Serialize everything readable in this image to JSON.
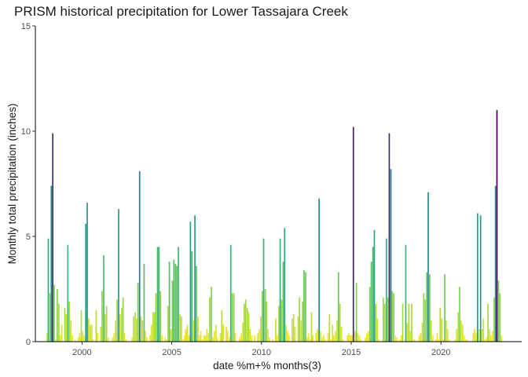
{
  "chart_data": {
    "type": "bar",
    "title": "PRISM historical precipitation for Lower Tassajara Creek",
    "xlabel": "date %m+% months(3)",
    "ylabel": "Monthly total precipitation (inches)",
    "xlim": [
      1997.4,
      2024.5
    ],
    "ylim": [
      0,
      15
    ],
    "x_ticks": [
      2000,
      2005,
      2010,
      2015,
      2020
    ],
    "y_ticks": [
      0,
      5,
      10,
      15
    ],
    "grid": false,
    "legend": "none",
    "color_scale": {
      "name": "viridis",
      "low": "#FDE725",
      "mid_low": "#7AD151",
      "mid": "#22A884",
      "mid_high": "#2A788E",
      "high": "#440154",
      "max_value": 11
    },
    "points": [
      {
        "x": 1998.04,
        "y": 0.4
      },
      {
        "x": 1998.12,
        "y": 4.9
      },
      {
        "x": 1998.21,
        "y": 2.3
      },
      {
        "x": 1998.29,
        "y": 7.4
      },
      {
        "x": 1998.37,
        "y": 9.9
      },
      {
        "x": 1998.46,
        "y": 2.7
      },
      {
        "x": 1998.54,
        "y": 0.1
      },
      {
        "x": 1998.62,
        "y": 2.5
      },
      {
        "x": 1998.71,
        "y": 1.8
      },
      {
        "x": 1998.79,
        "y": 0.3
      },
      {
        "x": 1998.87,
        "y": 0.8
      },
      {
        "x": 1999.04,
        "y": 1.6
      },
      {
        "x": 1999.12,
        "y": 1.3
      },
      {
        "x": 1999.21,
        "y": 4.6
      },
      {
        "x": 1999.29,
        "y": 1.9
      },
      {
        "x": 1999.37,
        "y": 1.0
      },
      {
        "x": 1999.46,
        "y": 0.3
      },
      {
        "x": 1999.62,
        "y": 0.1
      },
      {
        "x": 1999.79,
        "y": 0.2
      },
      {
        "x": 1999.87,
        "y": 0.4
      },
      {
        "x": 1999.96,
        "y": 1.5
      },
      {
        "x": 2000.04,
        "y": 0.5
      },
      {
        "x": 2000.12,
        "y": 0.3
      },
      {
        "x": 2000.21,
        "y": 5.6
      },
      {
        "x": 2000.29,
        "y": 6.6
      },
      {
        "x": 2000.37,
        "y": 1.1
      },
      {
        "x": 2000.46,
        "y": 0.8
      },
      {
        "x": 2000.54,
        "y": 0.8
      },
      {
        "x": 2000.62,
        "y": 0.1
      },
      {
        "x": 2000.79,
        "y": 1.5
      },
      {
        "x": 2000.87,
        "y": 0.4
      },
      {
        "x": 2001.04,
        "y": 0.7
      },
      {
        "x": 2001.12,
        "y": 2.4
      },
      {
        "x": 2001.21,
        "y": 4.1
      },
      {
        "x": 2001.29,
        "y": 1.3
      },
      {
        "x": 2001.37,
        "y": 1.7
      },
      {
        "x": 2001.46,
        "y": 0.2
      },
      {
        "x": 2001.71,
        "y": 0.2
      },
      {
        "x": 2001.79,
        "y": 0.4
      },
      {
        "x": 2001.87,
        "y": 1.0
      },
      {
        "x": 2001.96,
        "y": 2.0
      },
      {
        "x": 2002.04,
        "y": 6.3
      },
      {
        "x": 2002.12,
        "y": 1.3
      },
      {
        "x": 2002.21,
        "y": 1.6
      },
      {
        "x": 2002.29,
        "y": 2.1
      },
      {
        "x": 2002.37,
        "y": 0.4
      },
      {
        "x": 2002.46,
        "y": 0.1
      },
      {
        "x": 2002.79,
        "y": 0.2
      },
      {
        "x": 2002.87,
        "y": 1.2
      },
      {
        "x": 2002.96,
        "y": 1.4
      },
      {
        "x": 2003.04,
        "y": 1.1
      },
      {
        "x": 2003.12,
        "y": 2.8
      },
      {
        "x": 2003.21,
        "y": 8.1
      },
      {
        "x": 2003.29,
        "y": 1.2
      },
      {
        "x": 2003.37,
        "y": 1.0
      },
      {
        "x": 2003.46,
        "y": 3.7
      },
      {
        "x": 2003.54,
        "y": 0.5
      },
      {
        "x": 2003.62,
        "y": 0.2
      },
      {
        "x": 2003.79,
        "y": 0.3
      },
      {
        "x": 2003.87,
        "y": 0.8
      },
      {
        "x": 2003.96,
        "y": 1.4
      },
      {
        "x": 2004.04,
        "y": 1.4
      },
      {
        "x": 2004.12,
        "y": 2.3
      },
      {
        "x": 2004.21,
        "y": 4.5
      },
      {
        "x": 2004.29,
        "y": 4.5
      },
      {
        "x": 2004.37,
        "y": 2.4
      },
      {
        "x": 2004.46,
        "y": 0.3
      },
      {
        "x": 2004.62,
        "y": 0.2
      },
      {
        "x": 2004.71,
        "y": 0.1
      },
      {
        "x": 2004.79,
        "y": 1.7
      },
      {
        "x": 2004.87,
        "y": 3.8
      },
      {
        "x": 2004.96,
        "y": 0.6
      },
      {
        "x": 2005.04,
        "y": 2.9
      },
      {
        "x": 2005.12,
        "y": 3.9
      },
      {
        "x": 2005.21,
        "y": 3.7
      },
      {
        "x": 2005.29,
        "y": 3.6
      },
      {
        "x": 2005.37,
        "y": 4.5
      },
      {
        "x": 2005.46,
        "y": 1.3
      },
      {
        "x": 2005.54,
        "y": 1.2
      },
      {
        "x": 2005.62,
        "y": 0.1
      },
      {
        "x": 2005.71,
        "y": 0.3
      },
      {
        "x": 2005.79,
        "y": 0.6
      },
      {
        "x": 2005.87,
        "y": 0.8
      },
      {
        "x": 2005.96,
        "y": 0.3
      },
      {
        "x": 2006.04,
        "y": 5.7
      },
      {
        "x": 2006.12,
        "y": 4.3
      },
      {
        "x": 2006.21,
        "y": 1.0
      },
      {
        "x": 2006.29,
        "y": 6.0
      },
      {
        "x": 2006.37,
        "y": 3.6
      },
      {
        "x": 2006.46,
        "y": 1.2
      },
      {
        "x": 2006.54,
        "y": 0.3
      },
      {
        "x": 2006.62,
        "y": 0.5
      },
      {
        "x": 2006.71,
        "y": 0.1
      },
      {
        "x": 2006.79,
        "y": 0.3
      },
      {
        "x": 2006.87,
        "y": 0.3
      },
      {
        "x": 2006.96,
        "y": 0.6
      },
      {
        "x": 2007.04,
        "y": 0.4
      },
      {
        "x": 2007.12,
        "y": 2.1
      },
      {
        "x": 2007.21,
        "y": 2.6
      },
      {
        "x": 2007.29,
        "y": 0.2
      },
      {
        "x": 2007.37,
        "y": 0.5
      },
      {
        "x": 2007.46,
        "y": 0.8
      },
      {
        "x": 2007.54,
        "y": 0.2
      },
      {
        "x": 2007.71,
        "y": 0.4
      },
      {
        "x": 2007.79,
        "y": 1.5
      },
      {
        "x": 2007.87,
        "y": 0.8
      },
      {
        "x": 2008.04,
        "y": 0.7
      },
      {
        "x": 2008.12,
        "y": 0.5
      },
      {
        "x": 2008.21,
        "y": 0.2
      },
      {
        "x": 2008.29,
        "y": 4.6
      },
      {
        "x": 2008.37,
        "y": 2.3
      },
      {
        "x": 2008.46,
        "y": 2.3
      },
      {
        "x": 2008.54,
        "y": 0.4
      },
      {
        "x": 2008.79,
        "y": 0.2
      },
      {
        "x": 2008.87,
        "y": 0.4
      },
      {
        "x": 2008.96,
        "y": 0.9
      },
      {
        "x": 2009.04,
        "y": 1.8
      },
      {
        "x": 2009.12,
        "y": 2.0
      },
      {
        "x": 2009.21,
        "y": 1.6
      },
      {
        "x": 2009.29,
        "y": 1.4
      },
      {
        "x": 2009.37,
        "y": 0.6
      },
      {
        "x": 2009.46,
        "y": 0.3
      },
      {
        "x": 2009.62,
        "y": 0.3
      },
      {
        "x": 2009.79,
        "y": 0.4
      },
      {
        "x": 2009.87,
        "y": 0.6
      },
      {
        "x": 2009.96,
        "y": 1.2
      },
      {
        "x": 2010.04,
        "y": 2.4
      },
      {
        "x": 2010.12,
        "y": 4.9
      },
      {
        "x": 2010.21,
        "y": 2.5
      },
      {
        "x": 2010.29,
        "y": 1.9
      },
      {
        "x": 2010.37,
        "y": 0.6
      },
      {
        "x": 2010.46,
        "y": 0.2
      },
      {
        "x": 2010.62,
        "y": 0.1
      },
      {
        "x": 2010.79,
        "y": 1.1
      },
      {
        "x": 2010.87,
        "y": 0.3
      },
      {
        "x": 2010.96,
        "y": 1.7
      },
      {
        "x": 2011.04,
        "y": 4.9
      },
      {
        "x": 2011.12,
        "y": 2.0
      },
      {
        "x": 2011.21,
        "y": 3.8
      },
      {
        "x": 2011.29,
        "y": 5.4
      },
      {
        "x": 2011.37,
        "y": 0.8
      },
      {
        "x": 2011.46,
        "y": 0.5
      },
      {
        "x": 2011.54,
        "y": 0.3
      },
      {
        "x": 2011.71,
        "y": 1.1
      },
      {
        "x": 2011.79,
        "y": 1.3
      },
      {
        "x": 2011.87,
        "y": 0.7
      },
      {
        "x": 2012.04,
        "y": 1.2
      },
      {
        "x": 2012.12,
        "y": 2.1
      },
      {
        "x": 2012.21,
        "y": 1.0
      },
      {
        "x": 2012.29,
        "y": 1.9
      },
      {
        "x": 2012.37,
        "y": 3.4
      },
      {
        "x": 2012.46,
        "y": 3.3
      },
      {
        "x": 2012.54,
        "y": 0.2
      },
      {
        "x": 2012.62,
        "y": 0.4
      },
      {
        "x": 2012.71,
        "y": 0.1
      },
      {
        "x": 2012.79,
        "y": 1.4
      },
      {
        "x": 2012.87,
        "y": 0.3
      },
      {
        "x": 2013.04,
        "y": 0.4
      },
      {
        "x": 2013.12,
        "y": 0.6
      },
      {
        "x": 2013.21,
        "y": 6.8
      },
      {
        "x": 2013.29,
        "y": 0.5
      },
      {
        "x": 2013.37,
        "y": 0.2
      },
      {
        "x": 2013.46,
        "y": 0.3
      },
      {
        "x": 2013.54,
        "y": 0.1
      },
      {
        "x": 2013.71,
        "y": 0.4
      },
      {
        "x": 2013.79,
        "y": 1.3
      },
      {
        "x": 2013.87,
        "y": 0.1
      },
      {
        "x": 2013.96,
        "y": 0.8
      },
      {
        "x": 2014.04,
        "y": 0.3
      },
      {
        "x": 2014.12,
        "y": 0.5
      },
      {
        "x": 2014.21,
        "y": 1.0
      },
      {
        "x": 2014.29,
        "y": 3.3
      },
      {
        "x": 2014.37,
        "y": 1.8
      },
      {
        "x": 2014.46,
        "y": 0.7
      },
      {
        "x": 2014.54,
        "y": 0.1
      },
      {
        "x": 2014.79,
        "y": 0.3
      },
      {
        "x": 2014.87,
        "y": 0.4
      },
      {
        "x": 2014.96,
        "y": 0.3
      },
      {
        "x": 2015.04,
        "y": 0.3
      },
      {
        "x": 2015.12,
        "y": 10.2
      },
      {
        "x": 2015.21,
        "y": 0.5
      },
      {
        "x": 2015.29,
        "y": 2.8
      },
      {
        "x": 2015.37,
        "y": 0.4
      },
      {
        "x": 2015.46,
        "y": 0.3
      },
      {
        "x": 2015.54,
        "y": 0.1
      },
      {
        "x": 2015.79,
        "y": 0.2
      },
      {
        "x": 2015.87,
        "y": 0.4
      },
      {
        "x": 2015.96,
        "y": 0.5
      },
      {
        "x": 2016.04,
        "y": 2.6
      },
      {
        "x": 2016.12,
        "y": 3.8
      },
      {
        "x": 2016.21,
        "y": 4.5
      },
      {
        "x": 2016.29,
        "y": 5.3
      },
      {
        "x": 2016.37,
        "y": 1.8
      },
      {
        "x": 2016.46,
        "y": 1.1
      },
      {
        "x": 2016.54,
        "y": 0.1
      },
      {
        "x": 2016.79,
        "y": 2.1
      },
      {
        "x": 2016.87,
        "y": 1.8
      },
      {
        "x": 2016.96,
        "y": 4.9
      },
      {
        "x": 2017.04,
        "y": 2.1
      },
      {
        "x": 2017.12,
        "y": 9.9
      },
      {
        "x": 2017.21,
        "y": 8.2
      },
      {
        "x": 2017.29,
        "y": 2.4
      },
      {
        "x": 2017.37,
        "y": 2.3
      },
      {
        "x": 2017.46,
        "y": 0.3
      },
      {
        "x": 2017.54,
        "y": 0.2
      },
      {
        "x": 2017.71,
        "y": 0.1
      },
      {
        "x": 2017.79,
        "y": 0.3
      },
      {
        "x": 2017.87,
        "y": 1.8
      },
      {
        "x": 2018.04,
        "y": 4.6
      },
      {
        "x": 2018.12,
        "y": 0.9
      },
      {
        "x": 2018.21,
        "y": 1.8
      },
      {
        "x": 2018.29,
        "y": 0.5
      },
      {
        "x": 2018.37,
        "y": 1.8
      },
      {
        "x": 2018.46,
        "y": 0.1
      },
      {
        "x": 2018.54,
        "y": 0.1
      },
      {
        "x": 2018.79,
        "y": 0.3
      },
      {
        "x": 2018.87,
        "y": 0.4
      },
      {
        "x": 2018.96,
        "y": 0.9
      },
      {
        "x": 2019.04,
        "y": 2.3
      },
      {
        "x": 2019.12,
        "y": 2.0
      },
      {
        "x": 2019.21,
        "y": 3.3
      },
      {
        "x": 2019.29,
        "y": 7.1
      },
      {
        "x": 2019.37,
        "y": 3.2
      },
      {
        "x": 2019.46,
        "y": 1.0
      },
      {
        "x": 2019.54,
        "y": 0.3
      },
      {
        "x": 2019.71,
        "y": 0.1
      },
      {
        "x": 2019.79,
        "y": 0.4
      },
      {
        "x": 2019.87,
        "y": 0.1
      },
      {
        "x": 2019.96,
        "y": 1.6
      },
      {
        "x": 2020.04,
        "y": 1.1
      },
      {
        "x": 2020.12,
        "y": 0.1
      },
      {
        "x": 2020.21,
        "y": 3.2
      },
      {
        "x": 2020.29,
        "y": 1.0
      },
      {
        "x": 2020.37,
        "y": 0.6
      },
      {
        "x": 2020.46,
        "y": 0.1
      },
      {
        "x": 2020.79,
        "y": 0.1
      },
      {
        "x": 2020.87,
        "y": 0.6
      },
      {
        "x": 2020.96,
        "y": 1.4
      },
      {
        "x": 2021.04,
        "y": 2.6
      },
      {
        "x": 2021.12,
        "y": 1.0
      },
      {
        "x": 2021.21,
        "y": 0.8
      },
      {
        "x": 2021.29,
        "y": 0.3
      },
      {
        "x": 2021.37,
        "y": 0.1
      },
      {
        "x": 2021.46,
        "y": 0.1
      },
      {
        "x": 2021.79,
        "y": 0.4
      },
      {
        "x": 2021.87,
        "y": 0.6
      },
      {
        "x": 2021.96,
        "y": 0.4
      },
      {
        "x": 2022.04,
        "y": 6.1
      },
      {
        "x": 2022.12,
        "y": 0.6
      },
      {
        "x": 2022.21,
        "y": 6.0
      },
      {
        "x": 2022.29,
        "y": 0.6
      },
      {
        "x": 2022.37,
        "y": 1.1
      },
      {
        "x": 2022.46,
        "y": 0.1
      },
      {
        "x": 2022.54,
        "y": 0.2
      },
      {
        "x": 2022.62,
        "y": 1.8
      },
      {
        "x": 2022.71,
        "y": 0.6
      },
      {
        "x": 2022.79,
        "y": 0.3
      },
      {
        "x": 2022.87,
        "y": 0.5
      },
      {
        "x": 2022.96,
        "y": 2.1
      },
      {
        "x": 2023.04,
        "y": 7.4
      },
      {
        "x": 2023.12,
        "y": 11.0
      },
      {
        "x": 2023.21,
        "y": 2.9
      },
      {
        "x": 2023.29,
        "y": 2.3
      },
      {
        "x": 2023.37,
        "y": 0.3
      }
    ]
  }
}
